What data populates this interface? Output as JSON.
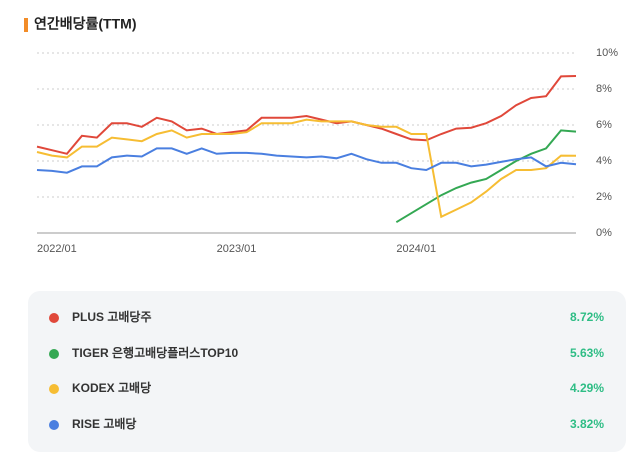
{
  "chart_data": {
    "type": "line",
    "title": "연간배당률(TTM)",
    "categories": [
      "2022/01",
      null,
      null,
      null,
      null,
      null,
      null,
      null,
      null,
      null,
      null,
      null,
      "2023/01",
      null,
      null,
      null,
      null,
      null,
      null,
      null,
      null,
      null,
      null,
      null,
      "2024/01",
      null,
      null,
      null,
      null,
      null,
      null,
      null,
      null,
      null,
      null,
      null,
      null
    ],
    "ylim": [
      0,
      10
    ],
    "yticks": [
      {
        "value": 0,
        "label": "0%"
      },
      {
        "value": 2,
        "label": "2%"
      },
      {
        "value": 4,
        "label": "4%"
      },
      {
        "value": 6,
        "label": "6%"
      },
      {
        "value": 8,
        "label": "8%"
      },
      {
        "value": 10,
        "label": "10%"
      }
    ],
    "grid": true,
    "series": [
      {
        "name": "PLUS 고배당주",
        "color": "#e0483a",
        "latest": "8.72%",
        "values": [
          4.8,
          4.6,
          4.4,
          5.4,
          5.3,
          6.1,
          6.1,
          5.9,
          6.4,
          6.2,
          5.7,
          5.8,
          5.5,
          5.6,
          5.7,
          6.4,
          6.4,
          6.4,
          6.5,
          6.3,
          6.1,
          6.2,
          6.0,
          5.8,
          5.5,
          5.2,
          5.15,
          5.5,
          5.8,
          5.85,
          6.1,
          6.5,
          7.1,
          7.5,
          7.6,
          8.7,
          8.72
        ]
      },
      {
        "name": "TIGER 은행고배당플러스TOP10",
        "color": "#34a853",
        "latest": "5.63%",
        "values": [
          null,
          null,
          null,
          null,
          null,
          null,
          null,
          null,
          null,
          null,
          null,
          null,
          null,
          null,
          null,
          null,
          null,
          null,
          null,
          null,
          null,
          null,
          null,
          null,
          0.6,
          1.1,
          1.6,
          2.1,
          2.5,
          2.8,
          3.0,
          3.5,
          4.0,
          4.4,
          4.7,
          5.7,
          5.63
        ]
      },
      {
        "name": "KODEX 고배당",
        "color": "#f6bd33",
        "latest": "4.29%",
        "values": [
          4.5,
          4.3,
          4.2,
          4.8,
          4.8,
          5.3,
          5.2,
          5.1,
          5.5,
          5.7,
          5.3,
          5.5,
          5.5,
          5.5,
          5.6,
          6.1,
          6.1,
          6.1,
          6.3,
          6.2,
          6.2,
          6.2,
          6.0,
          5.9,
          5.9,
          5.5,
          5.5,
          0.9,
          1.3,
          1.7,
          2.3,
          3.0,
          3.5,
          3.5,
          3.6,
          4.3,
          4.29
        ]
      },
      {
        "name": "RISE 고배당",
        "color": "#4a7fe0",
        "latest": "3.82%",
        "values": [
          3.5,
          3.45,
          3.35,
          3.7,
          3.7,
          4.2,
          4.3,
          4.25,
          4.7,
          4.7,
          4.4,
          4.7,
          4.4,
          4.45,
          4.45,
          4.4,
          4.3,
          4.25,
          4.2,
          4.25,
          4.15,
          4.4,
          4.1,
          3.9,
          3.9,
          3.6,
          3.5,
          3.9,
          3.9,
          3.7,
          3.8,
          3.95,
          4.1,
          4.2,
          3.7,
          3.9,
          3.82
        ]
      }
    ]
  }
}
